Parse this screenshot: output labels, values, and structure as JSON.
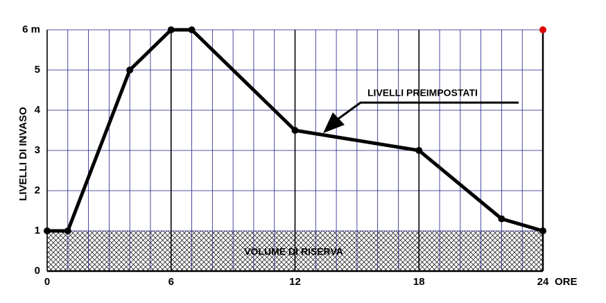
{
  "chart_data": {
    "type": "line",
    "y_label": "LIVELLI DI INVASO",
    "x_label": "ORE",
    "annotation": "LIVELLI  PREIMPOSTATI",
    "reserve_label": "VOLUME DI RISERVA",
    "reserve": 1,
    "x": [
      0,
      1,
      4,
      6,
      7,
      12,
      18,
      22,
      24
    ],
    "series": [
      {
        "color": "#000000",
        "values": [
          1,
          1,
          5,
          6,
          6,
          3.5,
          3,
          1.3,
          1
        ]
      }
    ],
    "xlim": [
      0,
      24
    ],
    "xticks": [
      0,
      6,
      12,
      18,
      24
    ],
    "ylim": [
      0,
      6
    ],
    "yticks": [
      0,
      1,
      2,
      3,
      4,
      5,
      {
        "value": 6,
        "label": "6 m"
      }
    ],
    "grid": true,
    "grid_color": "#1a1a8c"
  }
}
